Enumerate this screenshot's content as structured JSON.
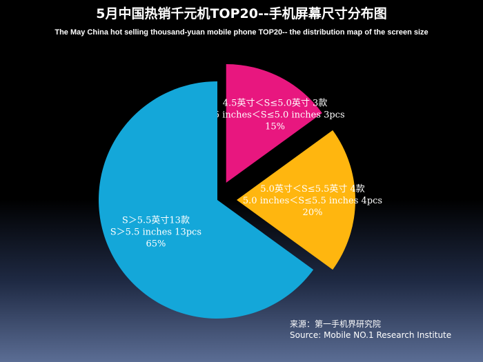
{
  "header": {
    "title": "5月中国热销千元机TOP20--手机屏幕尺寸分布图",
    "subtitle": "The  May  China hot selling thousand-yuan mobile phone TOP20-- the distribution map of the screen size"
  },
  "source": {
    "line1": "来源：第一手机界研究院",
    "line2": "Source: Mobile NO.1 Research Institute"
  },
  "chart_data": {
    "type": "pie",
    "title": "5月中国热销千元机TOP20--手机屏幕尺寸分布图",
    "subtitle": "The  May  China hot selling thousand-yuan mobile phone TOP20-- the distribution map of the screen size",
    "slices": [
      {
        "name": "4.5英寸＜S≤5.0英寸",
        "value": 15,
        "count": 3,
        "color": "#e8177f",
        "labels": [
          "4.5英寸＜S≤5.0英寸 3款",
          "4.5 inches＜S≤5.0 inches 3pcs",
          "15%"
        ]
      },
      {
        "name": "5.0英寸＜S≤5.5英寸",
        "value": 20,
        "count": 4,
        "color": "#ffb60f",
        "labels": [
          "5.0英寸＜S≤5.5英寸 4款",
          "5.0 inches＜S≤5.5 inches 4pcs",
          "20%"
        ]
      },
      {
        "name": "S＞5.5英寸",
        "value": 65,
        "count": 13,
        "color": "#14a7d9",
        "labels": [
          "S＞5.5英寸13款",
          "S＞5.5 inches 13pcs",
          "65%"
        ]
      }
    ],
    "legend": "none"
  }
}
